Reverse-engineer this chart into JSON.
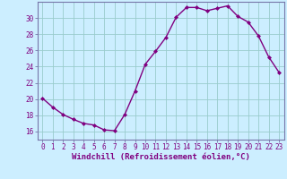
{
  "x": [
    0,
    1,
    2,
    3,
    4,
    5,
    6,
    7,
    8,
    9,
    10,
    11,
    12,
    13,
    14,
    15,
    16,
    17,
    18,
    19,
    20,
    21,
    22,
    23
  ],
  "y": [
    20.1,
    19.0,
    18.1,
    17.5,
    17.0,
    16.8,
    16.2,
    16.1,
    18.1,
    21.0,
    24.3,
    25.9,
    27.6,
    30.1,
    31.3,
    31.3,
    30.9,
    31.2,
    31.5,
    30.2,
    29.5,
    27.8,
    25.2,
    23.3
  ],
  "line_color": "#800080",
  "marker": "D",
  "marker_size": 2.0,
  "bg_color": "#cceeff",
  "grid_color": "#99cccc",
  "xlabel": "Windchill (Refroidissement éolien,°C)",
  "ylabel": "",
  "xlim": [
    -0.5,
    23.5
  ],
  "ylim": [
    15.0,
    32.0
  ],
  "yticks": [
    16,
    18,
    20,
    22,
    24,
    26,
    28,
    30
  ],
  "xticks": [
    0,
    1,
    2,
    3,
    4,
    5,
    6,
    7,
    8,
    9,
    10,
    11,
    12,
    13,
    14,
    15,
    16,
    17,
    18,
    19,
    20,
    21,
    22,
    23
  ],
  "xlabel_fontsize": 6.5,
  "tick_fontsize": 5.5,
  "spine_color": "#7777aa",
  "line_width": 1.0
}
